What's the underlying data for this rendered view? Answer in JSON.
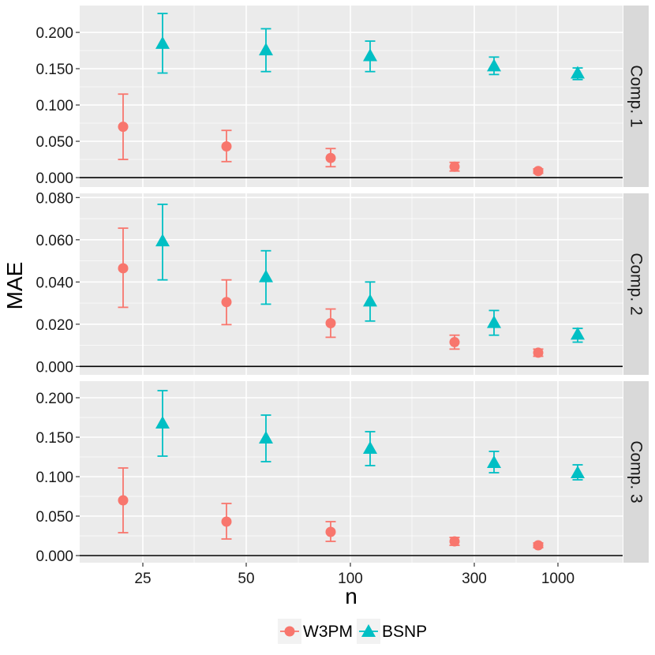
{
  "chart_data": {
    "type": "scatter",
    "subtype": "point-with-errorbars, faceted",
    "xlabel": "n",
    "ylabel": "MAE",
    "x_scale": "log",
    "x_ticks": [
      25,
      50,
      100,
      300,
      1000
    ],
    "x_tick_labels": [
      "25",
      "50",
      "100",
      "300",
      "1000"
    ],
    "legend": {
      "position": "bottom",
      "entries": [
        {
          "name": "W3PM",
          "color": "#F8766D",
          "shape": "circle"
        },
        {
          "name": "BSNP",
          "color": "#00BFC4",
          "shape": "triangle"
        }
      ]
    },
    "grid": true,
    "background": "#EBEBEB",
    "strip_background": "#D9D9D9",
    "facets": [
      {
        "label": "Comp. 1",
        "ylim": [
          -0.013,
          0.237
        ],
        "y_ticks": [
          0.0,
          0.05,
          0.1,
          0.15,
          0.2
        ],
        "y_tick_labels": [
          "0.000",
          "0.050",
          "0.100",
          "0.150",
          "0.200"
        ],
        "series": [
          {
            "name": "W3PM",
            "points": [
              {
                "group": 25,
                "y": 0.07,
                "ymin": 0.025,
                "ymax": 0.115
              },
              {
                "group": 50,
                "y": 0.043,
                "ymin": 0.022,
                "ymax": 0.065
              },
              {
                "group": 100,
                "y": 0.027,
                "ymin": 0.015,
                "ymax": 0.04
              },
              {
                "group": 300,
                "y": 0.015,
                "ymin": 0.009,
                "ymax": 0.021
              },
              {
                "group": 1000,
                "y": 0.009,
                "ymin": 0.006,
                "ymax": 0.012
              }
            ]
          },
          {
            "name": "BSNP",
            "points": [
              {
                "group": 25,
                "y": 0.185,
                "ymin": 0.144,
                "ymax": 0.226
              },
              {
                "group": 50,
                "y": 0.176,
                "ymin": 0.146,
                "ymax": 0.205
              },
              {
                "group": 100,
                "y": 0.168,
                "ymin": 0.146,
                "ymax": 0.188
              },
              {
                "group": 300,
                "y": 0.154,
                "ymin": 0.142,
                "ymax": 0.166
              },
              {
                "group": 1000,
                "y": 0.144,
                "ymin": 0.135,
                "ymax": 0.151
              }
            ]
          }
        ]
      },
      {
        "label": "Comp. 2",
        "ylim": [
          -0.004,
          0.082
        ],
        "y_ticks": [
          0.0,
          0.02,
          0.04,
          0.06,
          0.08
        ],
        "y_tick_labels": [
          "0.000",
          "0.020",
          "0.040",
          "0.060",
          "0.080"
        ],
        "series": [
          {
            "name": "W3PM",
            "points": [
              {
                "group": 25,
                "y": 0.0465,
                "ymin": 0.028,
                "ymax": 0.0655
              },
              {
                "group": 50,
                "y": 0.0305,
                "ymin": 0.0198,
                "ymax": 0.041
              },
              {
                "group": 100,
                "y": 0.0205,
                "ymin": 0.0138,
                "ymax": 0.0272
              },
              {
                "group": 300,
                "y": 0.0115,
                "ymin": 0.0082,
                "ymax": 0.0148
              },
              {
                "group": 1000,
                "y": 0.0065,
                "ymin": 0.0048,
                "ymax": 0.0082
              }
            ]
          },
          {
            "name": "BSNP",
            "points": [
              {
                "group": 25,
                "y": 0.0595,
                "ymin": 0.041,
                "ymax": 0.0768
              },
              {
                "group": 50,
                "y": 0.0425,
                "ymin": 0.0295,
                "ymax": 0.0548
              },
              {
                "group": 100,
                "y": 0.031,
                "ymin": 0.0215,
                "ymax": 0.04
              },
              {
                "group": 300,
                "y": 0.0208,
                "ymin": 0.0148,
                "ymax": 0.0265
              },
              {
                "group": 1000,
                "y": 0.0153,
                "ymin": 0.0115,
                "ymax": 0.018
              }
            ]
          }
        ]
      },
      {
        "label": "Comp. 3",
        "ylim": [
          -0.009,
          0.221
        ],
        "y_ticks": [
          0.0,
          0.05,
          0.1,
          0.15,
          0.2
        ],
        "y_tick_labels": [
          "0.000",
          "0.050",
          "0.100",
          "0.150",
          "0.200"
        ],
        "series": [
          {
            "name": "W3PM",
            "points": [
              {
                "group": 25,
                "y": 0.07,
                "ymin": 0.029,
                "ymax": 0.111
              },
              {
                "group": 50,
                "y": 0.043,
                "ymin": 0.021,
                "ymax": 0.066
              },
              {
                "group": 100,
                "y": 0.03,
                "ymin": 0.018,
                "ymax": 0.043
              },
              {
                "group": 300,
                "y": 0.018,
                "ymin": 0.013,
                "ymax": 0.023
              },
              {
                "group": 1000,
                "y": 0.013,
                "ymin": 0.01,
                "ymax": 0.016
              }
            ]
          },
          {
            "name": "BSNP",
            "points": [
              {
                "group": 25,
                "y": 0.168,
                "ymin": 0.126,
                "ymax": 0.209
              },
              {
                "group": 50,
                "y": 0.149,
                "ymin": 0.119,
                "ymax": 0.178
              },
              {
                "group": 100,
                "y": 0.136,
                "ymin": 0.114,
                "ymax": 0.157
              },
              {
                "group": 300,
                "y": 0.118,
                "ymin": 0.105,
                "ymax": 0.132
              },
              {
                "group": 1000,
                "y": 0.105,
                "ymin": 0.096,
                "ymax": 0.115
              }
            ]
          }
        ]
      }
    ]
  }
}
